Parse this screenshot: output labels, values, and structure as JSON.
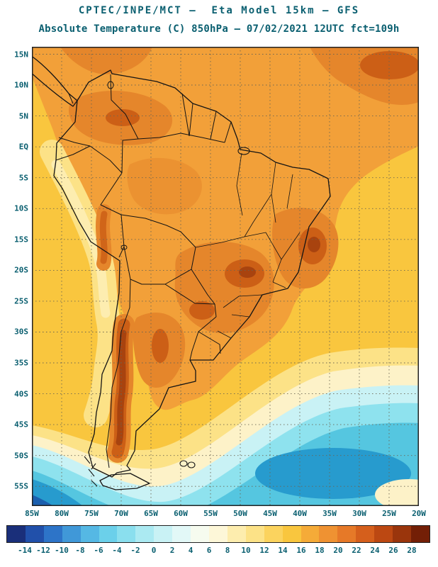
{
  "header": {
    "line1": "CPTEC/INPE/MCT —  Eta Model 15km — GFS",
    "line2": "Absolute Temperature (C) 850hPa — 07/02/2021 12UTC fct=109h"
  },
  "map": {
    "lat_labels": [
      "15N",
      "10N",
      "5N",
      "EQ",
      "5S",
      "10S",
      "15S",
      "20S",
      "25S",
      "30S",
      "35S",
      "40S",
      "45S",
      "50S",
      "55S"
    ],
    "lon_labels": [
      "85W",
      "80W",
      "75W",
      "70W",
      "65W",
      "60W",
      "55W",
      "50W",
      "45W",
      "40W",
      "35W",
      "30W",
      "25W",
      "20W"
    ]
  },
  "colorbar": {
    "tick_labels": [
      "-14",
      "-12",
      "-10",
      "-8",
      "-6",
      "-4",
      "-2",
      "0",
      "2",
      "4",
      "6",
      "8",
      "10",
      "12",
      "14",
      "16",
      "18",
      "20",
      "22",
      "24",
      "26",
      "28"
    ],
    "colors": [
      "#1a2f7a",
      "#2150aa",
      "#2d74c8",
      "#4098d8",
      "#55b8e4",
      "#6bd0ea",
      "#8adfee",
      "#abeaf2",
      "#c9f2f5",
      "#e2f8f7",
      "#f6fbef",
      "#fdf7d8",
      "#fdedae",
      "#fce287",
      "#fbd35e",
      "#f9c63e",
      "#f5ab38",
      "#ef9232",
      "#e67928",
      "#d55f1c",
      "#bc4812",
      "#9a350c",
      "#731f06"
    ]
  },
  "palette": {
    "text": "#0a5f70",
    "frame": "#222222",
    "coast": "#141414",
    "grid": "#6b6552",
    "gold": "#f9c63e",
    "orange": "#f2a039",
    "dark_orange": "#e5862b",
    "red_orange": "#cc5f16",
    "dark_red": "#a8430f",
    "pale_yellow": "#fce287",
    "pale_core": "#fdedb0",
    "cream": "#fdf2c8",
    "light_cyan": "#c9f2f5",
    "cyan": "#8ee2ee",
    "med_cyan": "#55c6e0",
    "deep_cyan": "#279bce",
    "blue": "#1b5fae"
  }
}
